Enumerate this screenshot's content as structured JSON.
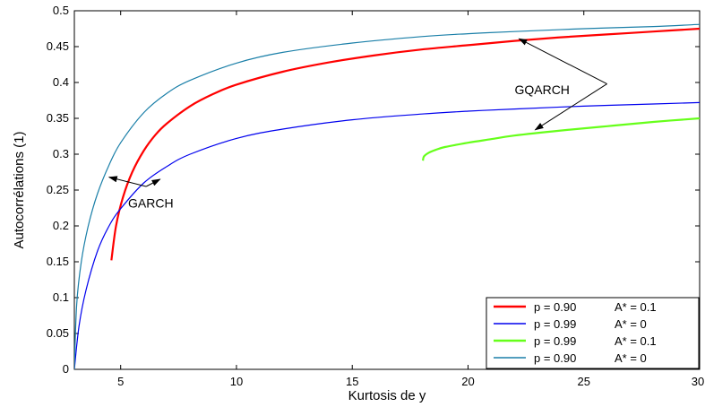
{
  "chart_data": {
    "type": "line",
    "title": "",
    "xlabel": "Kurtosis de y",
    "ylabel": "Autocorrélations (1)",
    "xlim": [
      3,
      30
    ],
    "ylim": [
      0,
      0.5
    ],
    "xticks": [
      5,
      10,
      15,
      20,
      25,
      30
    ],
    "xtick_labels": [
      "5",
      "10",
      "15",
      "20",
      "25",
      "30"
    ],
    "yticks": [
      0,
      0.05,
      0.1,
      0.15,
      0.2,
      0.25,
      0.3,
      0.35,
      0.4,
      0.45,
      0.5
    ],
    "ytick_labels": [
      "0",
      "0.05",
      "0.1",
      "0.15",
      "0.2",
      "0.25",
      "0.3",
      "0.35",
      "0.4",
      "0.45",
      "0.5"
    ],
    "grid": false,
    "legend_position": "bottom-right",
    "series": [
      {
        "legend_p": "p = 0.90",
        "legend_a": "A* = 0.1",
        "color": "#ff0000",
        "x": [
          4.6,
          4.8,
          5.1,
          5.5,
          6,
          6.5,
          7,
          8,
          9,
          10,
          12,
          14,
          16,
          18,
          20,
          22,
          24,
          26,
          28,
          30
        ],
        "y": [
          0.152,
          0.2,
          0.24,
          0.275,
          0.305,
          0.327,
          0.343,
          0.367,
          0.384,
          0.397,
          0.415,
          0.428,
          0.438,
          0.446,
          0.452,
          0.458,
          0.463,
          0.467,
          0.471,
          0.475
        ]
      },
      {
        "legend_p": "p = 0.99",
        "legend_a": "A* = 0",
        "color": "#0000ee",
        "x": [
          3,
          3.2,
          3.5,
          4,
          4.5,
          5,
          6,
          7,
          8,
          10,
          12,
          15,
          18,
          20,
          22,
          25,
          28,
          30
        ],
        "y": [
          0,
          0.06,
          0.11,
          0.165,
          0.2,
          0.224,
          0.26,
          0.283,
          0.3,
          0.322,
          0.335,
          0.348,
          0.356,
          0.36,
          0.363,
          0.367,
          0.37,
          0.372
        ]
      },
      {
        "legend_p": "p = 0.99",
        "legend_a": "A* = 0.1",
        "color": "#66ff1a",
        "x": [
          18.05,
          18.1,
          18.3,
          18.6,
          19,
          20,
          21,
          22,
          24,
          26,
          28,
          30
        ],
        "y": [
          0.291,
          0.297,
          0.302,
          0.306,
          0.31,
          0.316,
          0.321,
          0.326,
          0.333,
          0.339,
          0.345,
          0.35
        ]
      },
      {
        "legend_p": "p = 0.90",
        "legend_a": "A* = 0",
        "color": "#1a7fa8",
        "x": [
          3,
          3.1,
          3.3,
          3.6,
          4,
          4.5,
          5,
          6,
          7,
          8,
          10,
          12,
          15,
          18,
          20,
          22,
          25,
          28,
          30
        ],
        "y": [
          0,
          0.09,
          0.15,
          0.2,
          0.245,
          0.285,
          0.316,
          0.358,
          0.385,
          0.403,
          0.427,
          0.442,
          0.455,
          0.464,
          0.468,
          0.471,
          0.475,
          0.478,
          0.481
        ]
      }
    ],
    "annotations": [
      {
        "text": "GQARCH",
        "label_at": [
          23.2,
          0.39
        ],
        "arrows": [
          {
            "from": [
              26.0,
              0.398
            ],
            "to": [
              22.2,
              0.461
            ]
          },
          {
            "from": [
              26.0,
              0.398
            ],
            "to": [
              22.9,
              0.334
            ]
          }
        ]
      },
      {
        "text": "GARCH",
        "label_at": [
          6.3,
          0.232
        ],
        "arrows": [
          {
            "from": [
              6.1,
              0.255
            ],
            "to": [
              4.5,
              0.268
            ]
          },
          {
            "from": [
              6.1,
              0.255
            ],
            "to": [
              6.7,
              0.265
            ]
          }
        ]
      }
    ]
  }
}
